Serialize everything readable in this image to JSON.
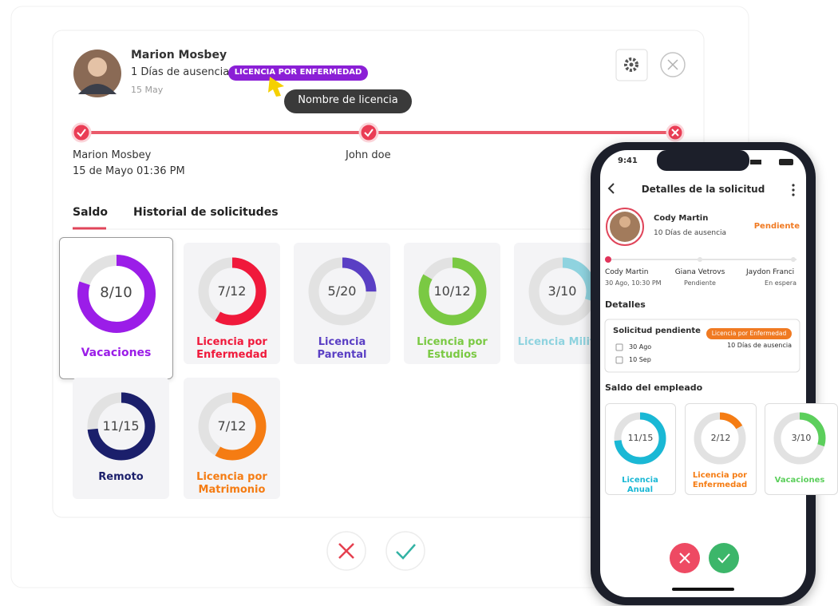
{
  "request": {
    "name": "Marion Mosbey",
    "absence": "1 Días de ausencia",
    "badge": "LICENCIA POR ENFERMEDAD",
    "date": "15 May",
    "tooltip": "Nombre de licencia"
  },
  "timeline": [
    {
      "name": "Marion Mosbey",
      "date": "15 de Mayo 01:36 PM"
    },
    {
      "name": "John doe"
    }
  ],
  "tabs": [
    "Saldo",
    "Historial de solicitudes"
  ],
  "balances": [
    {
      "label": "8/10",
      "used": 8,
      "total": 10,
      "name": "Vacaciones",
      "color": "#9b1de8"
    },
    {
      "label": "7/12",
      "used": 7,
      "total": 12,
      "name": "Licencia por Enfermedad",
      "color": "#f0193b"
    },
    {
      "label": "5/20",
      "used": 5,
      "total": 20,
      "name": "Licencia Parental",
      "color": "#5a3fc4"
    },
    {
      "label": "10/12",
      "used": 10,
      "total": 12,
      "name": "Licencia por Estudios",
      "color": "#7ac943"
    },
    {
      "label": "3/10",
      "used": 3,
      "total": 10,
      "name": "Licencia Militar",
      "color": "#8fd3df"
    },
    {
      "label": "11/15",
      "used": 11,
      "total": 15,
      "name": "Remoto",
      "color": "#1b1f6b"
    },
    {
      "label": "7/12",
      "used": 7,
      "total": 12,
      "name": "Licencia por Matrimonio",
      "color": "#f57c13"
    }
  ],
  "mobile": {
    "time": "9:41",
    "title": "Detalles de la solicitud",
    "employee": "Cody Martin",
    "absence": "10 Días de ausencia",
    "status": "Pendiente",
    "timeline": [
      {
        "name": "Cody Martin",
        "note": "30 Ago, 10:30 PM"
      },
      {
        "name": "Giana Vetrovs",
        "note": "Pendiente"
      },
      {
        "name": "Jaydon Franci",
        "note": "En espera"
      }
    ],
    "details_heading": "Detalles",
    "card": {
      "title": "Solicitud pendiente",
      "badge": "Licencia por Enfermedad",
      "absence": "10 Días de ausencia",
      "start": "30 Ago",
      "end": "10 Sep"
    },
    "balance_heading": "Saldo del empleado",
    "balances": [
      {
        "label": "11/15",
        "used": 11,
        "total": 15,
        "name": "Licencia Anual",
        "color": "#1ab8d5"
      },
      {
        "label": "2/12",
        "used": 2,
        "total": 12,
        "name": "Licencia por Enfermedad",
        "color": "#f57c13"
      },
      {
        "label": "3/10",
        "used": 3,
        "total": 10,
        "name": "Vacaciones",
        "color": "#5ccf5c"
      }
    ]
  }
}
